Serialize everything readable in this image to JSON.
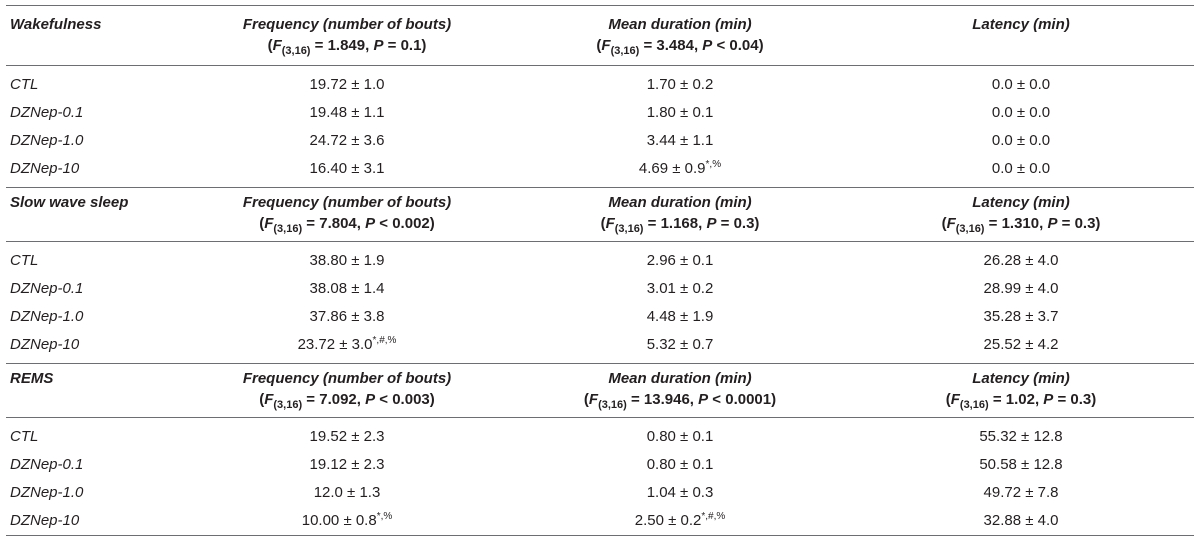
{
  "columns": {
    "frequency": "Frequency (number of bouts)",
    "mean_duration": "Mean duration (min)",
    "latency": "Latency (min)"
  },
  "sections": [
    {
      "name": "Wakefulness",
      "stats": {
        "frequency": {
          "sub": "(3,16)",
          "tail": " = 1.849, ",
          "ptail": " = 0.1)"
        },
        "mean_duration": {
          "sub": "(3,16)",
          "tail": " = 3.484, ",
          "ptail": " < 0.04)"
        }
      },
      "rows": [
        {
          "group": "CTL",
          "frequency": "19.72 ± 1.0",
          "mean_duration": "1.70 ± 0.2",
          "latency": "0.0 ± 0.0"
        },
        {
          "group": "DZNep-0.1",
          "frequency": "19.48 ± 1.1",
          "mean_duration": "1.80 ± 0.1",
          "latency": "0.0 ± 0.0"
        },
        {
          "group": "DZNep-1.0",
          "frequency": "24.72 ± 3.6",
          "mean_duration": "3.44 ± 1.1",
          "latency": "0.0 ± 0.0"
        },
        {
          "group": "DZNep-10",
          "frequency": "16.40 ± 3.1",
          "mean_duration": "4.69 ± 0.9",
          "mean_duration_mark": "*,%",
          "latency": "0.0 ± 0.0"
        }
      ]
    },
    {
      "name": "Slow wave sleep",
      "stats": {
        "frequency": {
          "sub": "(3,16)",
          "tail": " = 7.804, ",
          "ptail": " < 0.002)"
        },
        "mean_duration": {
          "sub": "(3,16)",
          "tail": " = 1.168, ",
          "ptail": " = 0.3)"
        },
        "latency": {
          "sub": "(3,16)",
          "tail": " = 1.310, ",
          "ptail": " = 0.3)"
        }
      },
      "rows": [
        {
          "group": "CTL",
          "frequency": "38.80 ± 1.9",
          "mean_duration": "2.96 ± 0.1",
          "latency": "26.28 ± 4.0"
        },
        {
          "group": "DZNep-0.1",
          "frequency": "38.08 ± 1.4",
          "mean_duration": "3.01 ± 0.2",
          "latency": "28.99 ± 4.0"
        },
        {
          "group": "DZNep-1.0",
          "frequency": "37.86 ± 3.8",
          "mean_duration": "4.48 ± 1.9",
          "latency": "35.28 ± 3.7"
        },
        {
          "group": "DZNep-10",
          "frequency": "23.72 ± 3.0",
          "frequency_mark": "*,#,%",
          "mean_duration": "5.32 ± 0.7",
          "latency": "25.52 ± 4.2"
        }
      ]
    },
    {
      "name": "REMS",
      "stats": {
        "frequency": {
          "sub": "(3,16)",
          "tail": " = 7.092, ",
          "ptail": " < 0.003)"
        },
        "mean_duration": {
          "sub": "(3,16)",
          "tail": " = 13.946, ",
          "ptail": " < 0.0001)"
        },
        "latency": {
          "sub": "(3,16)",
          "tail": " = 1.02, ",
          "ptail": " = 0.3)"
        }
      },
      "rows": [
        {
          "group": "CTL",
          "frequency": "19.52 ± 2.3",
          "mean_duration": "0.80 ± 0.1",
          "latency": "55.32 ± 12.8"
        },
        {
          "group": "DZNep-0.1",
          "frequency": "19.12 ± 2.3",
          "mean_duration": "0.80 ± 0.1",
          "latency": "50.58 ± 12.8"
        },
        {
          "group": "DZNep-1.0",
          "frequency": "12.0 ± 1.3",
          "mean_duration": "1.04 ± 0.3",
          "latency": "49.72 ± 7.8"
        },
        {
          "group": "DZNep-10",
          "frequency": "10.00 ± 0.8",
          "frequency_mark": "*,%",
          "mean_duration": "2.50 ± 0.2",
          "mean_duration_mark": "*,#,%",
          "latency": "32.88 ± 4.0"
        }
      ]
    }
  ],
  "symbols": {
    "f": "F",
    "p": "P",
    "open": "(",
    "p_sep": ""
  }
}
